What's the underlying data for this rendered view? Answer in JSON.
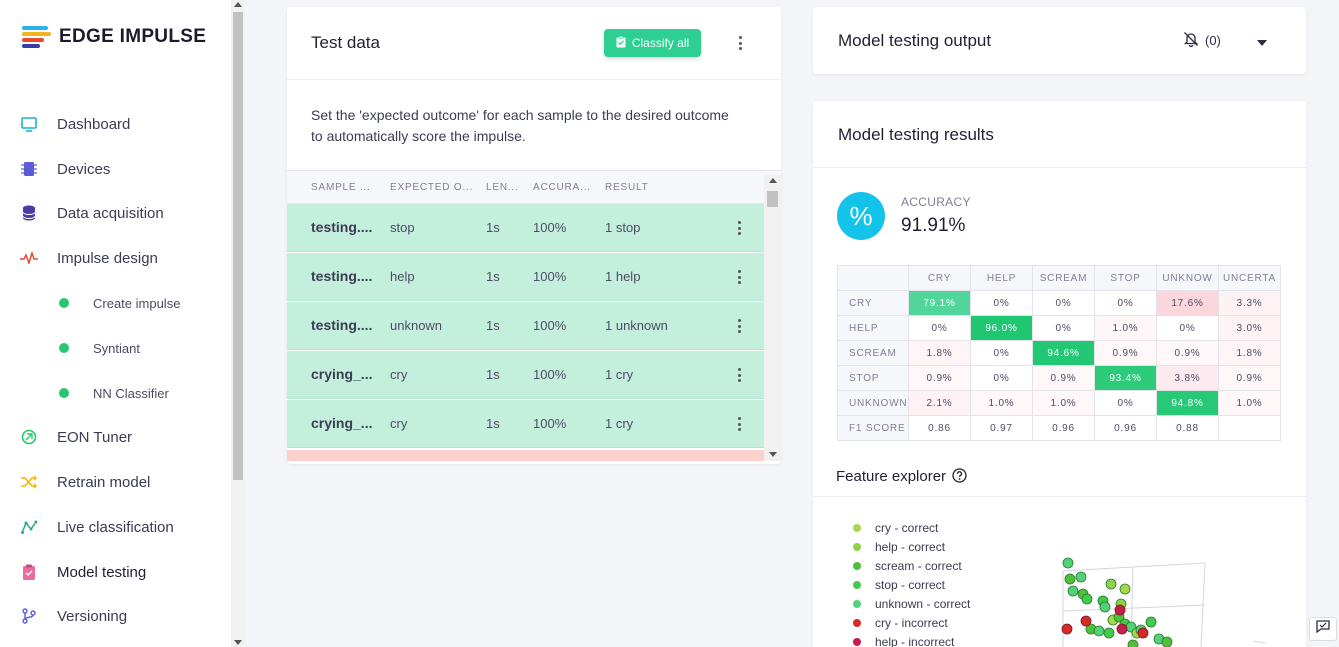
{
  "brand": {
    "name": "EDGE IMPULSE"
  },
  "nav": [
    {
      "label": "Dashboard",
      "icon": "monitor-icon",
      "color": "#1ab3d1"
    },
    {
      "label": "Devices",
      "icon": "chip-icon",
      "color": "#5b5bd6"
    },
    {
      "label": "Data acquisition",
      "icon": "database-icon",
      "color": "#4b3aa8"
    },
    {
      "label": "Impulse design",
      "icon": "pulse-icon",
      "color": "#e8482c"
    },
    {
      "label": "Create impulse",
      "icon": "dot-icon",
      "color": "#28c76f"
    },
    {
      "label": "Syntiant",
      "icon": "dot-icon",
      "color": "#28c76f"
    },
    {
      "label": "NN Classifier",
      "icon": "dot-icon",
      "color": "#28c76f"
    },
    {
      "label": "EON Tuner",
      "icon": "eon-icon",
      "color": "#28c76f"
    },
    {
      "label": "Retrain model",
      "icon": "shuffle-icon",
      "color": "#f5b800"
    },
    {
      "label": "Live classification",
      "icon": "graph-icon",
      "color": "#28a98a"
    },
    {
      "label": "Model testing",
      "icon": "clipboard-check-icon",
      "color": "#e96ca0"
    },
    {
      "label": "Versioning",
      "icon": "branch-icon",
      "color": "#5b5bd6"
    }
  ],
  "test_data": {
    "title": "Test data",
    "classify_all": "Classify all",
    "description": "Set the 'expected outcome' for each sample to the desired outcome to automatically score the impulse.",
    "columns": [
      "SAMPLE ...",
      "EXPECTED O...",
      "LEN...",
      "ACCURA...",
      "RESULT"
    ],
    "rows": [
      {
        "name": "testing....",
        "expected": "stop",
        "length": "1s",
        "accuracy": "100%",
        "result": "1 stop"
      },
      {
        "name": "testing....",
        "expected": "help",
        "length": "1s",
        "accuracy": "100%",
        "result": "1 help"
      },
      {
        "name": "testing....",
        "expected": "unknown",
        "length": "1s",
        "accuracy": "100%",
        "result": "1 unknown"
      },
      {
        "name": "crying_...",
        "expected": "cry",
        "length": "1s",
        "accuracy": "100%",
        "result": "1 cry"
      },
      {
        "name": "crying_...",
        "expected": "cry",
        "length": "1s",
        "accuracy": "100%",
        "result": "1 cry"
      }
    ]
  },
  "output": {
    "title": "Model testing output",
    "notifications": "(0)"
  },
  "results": {
    "title": "Model testing results",
    "accuracy_icon": "%",
    "accuracy_label": "ACCURACY",
    "accuracy_value": "91.91%",
    "matrix": {
      "columns": [
        "CRY",
        "HELP",
        "SCREAM",
        "STOP",
        "UNKNOW",
        "UNCERTA"
      ],
      "rows": [
        {
          "label": "CRY",
          "cells": [
            "79.1%",
            "0%",
            "0%",
            "0%",
            "17.6%",
            "3.3%"
          ]
        },
        {
          "label": "HELP",
          "cells": [
            "0%",
            "96.0%",
            "0%",
            "1.0%",
            "0%",
            "3.0%"
          ]
        },
        {
          "label": "SCREAM",
          "cells": [
            "1.8%",
            "0%",
            "94.6%",
            "0.9%",
            "0.9%",
            "1.8%"
          ]
        },
        {
          "label": "STOP",
          "cells": [
            "0.9%",
            "0%",
            "0.9%",
            "93.4%",
            "3.8%",
            "0.9%"
          ]
        },
        {
          "label": "UNKNOWN",
          "cells": [
            "2.1%",
            "1.0%",
            "1.0%",
            "0%",
            "94.8%",
            "1.0%"
          ]
        },
        {
          "label": "F1 SCORE",
          "cells": [
            "0.86",
            "0.97",
            "0.96",
            "0.96",
            "0.88",
            ""
          ]
        }
      ]
    }
  },
  "feature_explorer": {
    "title": "Feature explorer",
    "legend": [
      {
        "label": "cry - correct",
        "color": "#a8d84a"
      },
      {
        "label": "help - correct",
        "color": "#8fd24a"
      },
      {
        "label": "scream - correct",
        "color": "#4fc03a"
      },
      {
        "label": "stop - correct",
        "color": "#3ecb4e"
      },
      {
        "label": "unknown - correct",
        "color": "#52d07a"
      },
      {
        "label": "cry - incorrect",
        "color": "#d42a2a"
      },
      {
        "label": "help - incorrect",
        "color": "#c41e4a"
      }
    ]
  }
}
